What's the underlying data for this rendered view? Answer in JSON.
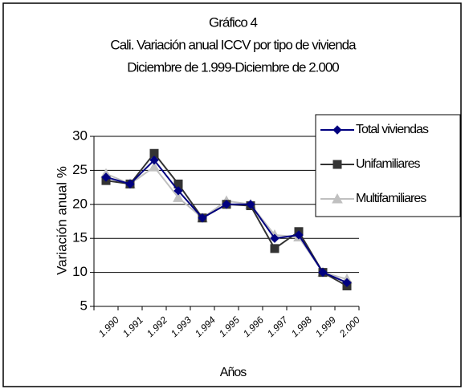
{
  "chart_data": {
    "type": "line",
    "title": [
      "Gráfico 4",
      "Cali. Variación anual ICCV por tipo de vivienda",
      "Diciembre de 1.999-Diciembre de 2.000"
    ],
    "x_label": "Años",
    "y_label": "Variación anual %",
    "categories": [
      "1.990",
      "1.991",
      "1.992",
      "1.993",
      "1.994",
      "1.995",
      "1.996",
      "1.997",
      "1.998",
      "1.999",
      "2.000"
    ],
    "series": [
      {
        "name": "Total viviendas",
        "color": "#000080",
        "marker": "diamond",
        "values": [
          24,
          23,
          26.5,
          22,
          18,
          20,
          20,
          15,
          15.5,
          10,
          8.5
        ]
      },
      {
        "name": "Unifamiliares",
        "color": "#333333",
        "marker": "square",
        "values": [
          23.5,
          23,
          27.5,
          23,
          18,
          20,
          19.8,
          13.5,
          16,
          10,
          8
        ]
      },
      {
        "name": "Multifamiliares",
        "color": "#c0c0c0",
        "marker": "triangle",
        "values": [
          24.5,
          23,
          25.5,
          21,
          18,
          20.5,
          20,
          15.5,
          15.2,
          10,
          9
        ]
      }
    ],
    "ylim": [
      5,
      30
    ],
    "yticks": [
      5,
      10,
      15,
      20,
      25,
      30
    ],
    "grid": true,
    "legend": "top-right"
  }
}
